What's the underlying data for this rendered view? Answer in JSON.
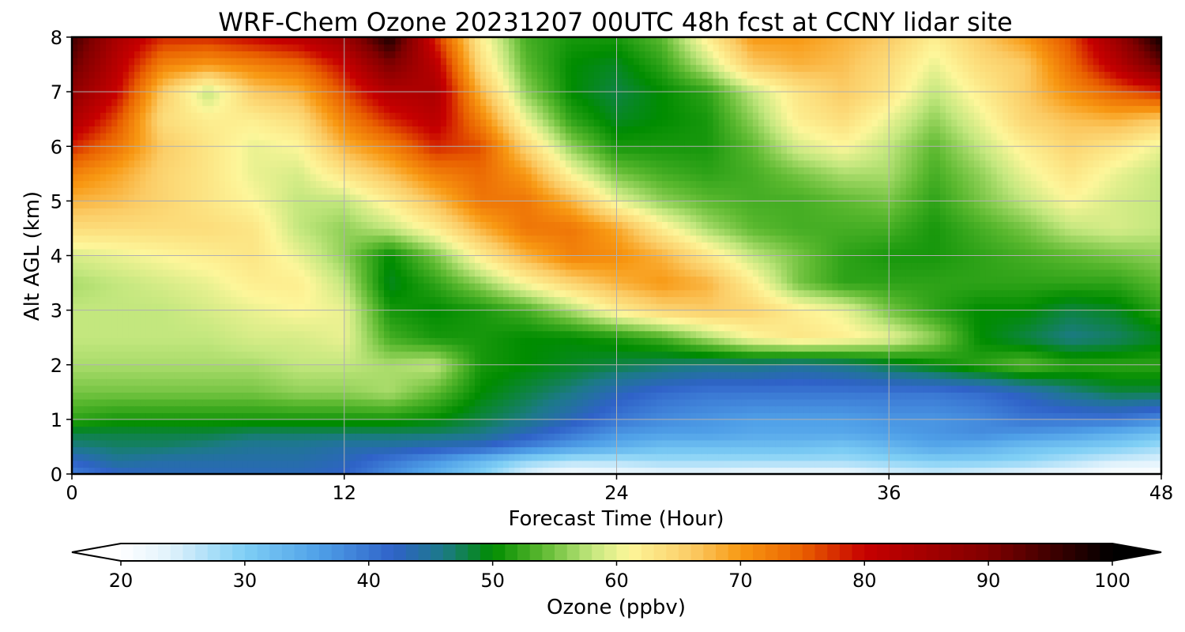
{
  "chart_data": {
    "type": "heatmap",
    "title": "WRF-Chem Ozone  20231207 00UTC 48h fcst at CCNY lidar site",
    "xlabel": "Forecast Time (Hour)",
    "ylabel": "Alt AGL (km)",
    "xlim": [
      0,
      48
    ],
    "ylim": [
      0,
      8
    ],
    "xticks": [
      0,
      12,
      24,
      36,
      48
    ],
    "yticks": [
      0,
      1,
      2,
      3,
      4,
      5,
      6,
      7,
      8
    ],
    "grid": true,
    "colorbar": {
      "label": "Ozone  (ppbv)",
      "orientation": "horizontal",
      "extend": "both",
      "range": [
        20,
        100
      ],
      "ticks": [
        20,
        30,
        40,
        50,
        60,
        70,
        80,
        90,
        100
      ],
      "colormap": [
        {
          "value": 20,
          "color": "#ffffff"
        },
        {
          "value": 24,
          "color": "#e0f2fc"
        },
        {
          "value": 30,
          "color": "#7fcff5"
        },
        {
          "value": 36,
          "color": "#4fa0e8"
        },
        {
          "value": 42,
          "color": "#2f62c8"
        },
        {
          "value": 46,
          "color": "#1c7a88"
        },
        {
          "value": 50,
          "color": "#008c00"
        },
        {
          "value": 54,
          "color": "#5cb930"
        },
        {
          "value": 58,
          "color": "#c3e77e"
        },
        {
          "value": 61,
          "color": "#fdf69a"
        },
        {
          "value": 66,
          "color": "#fbcc66"
        },
        {
          "value": 70,
          "color": "#f89812"
        },
        {
          "value": 75,
          "color": "#e96000"
        },
        {
          "value": 80,
          "color": "#c70000"
        },
        {
          "value": 90,
          "color": "#800000"
        },
        {
          "value": 100,
          "color": "#000000"
        }
      ]
    },
    "x": [
      0,
      2,
      4,
      6,
      8,
      10,
      12,
      14,
      16,
      18,
      20,
      22,
      24,
      26,
      28,
      30,
      32,
      34,
      36,
      38,
      40,
      42,
      44,
      46,
      48
    ],
    "y": [
      0,
      0.25,
      0.5,
      0.75,
      1,
      1.5,
      2,
      2.5,
      3,
      3.5,
      4,
      4.5,
      5,
      5.5,
      6,
      6.5,
      7,
      7.5,
      8
    ],
    "z": [
      [
        39,
        42,
        43,
        43,
        43,
        43,
        42,
        38,
        34,
        30,
        24,
        21,
        22,
        23,
        23,
        22,
        22,
        22,
        24,
        25,
        24,
        23,
        22,
        20,
        20
      ],
      [
        42,
        45,
        44,
        44,
        44,
        44,
        43,
        40,
        37,
        33,
        29,
        27,
        27,
        28,
        28,
        28,
        28,
        28,
        29,
        30,
        30,
        29,
        27,
        25,
        24
      ],
      [
        46,
        47,
        47,
        46,
        45,
        45,
        44,
        44,
        43,
        42,
        39,
        36,
        34,
        32,
        32,
        32,
        32,
        31,
        33,
        35,
        34,
        32,
        31,
        30,
        28
      ],
      [
        48,
        48,
        48,
        48,
        47,
        47,
        47,
        47,
        47,
        46,
        43,
        40,
        37,
        36,
        36,
        35,
        35,
        35,
        36,
        37,
        38,
        37,
        36,
        34,
        32
      ],
      [
        52,
        51,
        51,
        51,
        51,
        51,
        51,
        51,
        50,
        48,
        46,
        43,
        40,
        38,
        37,
        36,
        36,
        36,
        37,
        37,
        38,
        40,
        40,
        40,
        38
      ],
      [
        55,
        55,
        55,
        55,
        55,
        56,
        56,
        57,
        54,
        50,
        48,
        46,
        43,
        41,
        40,
        40,
        40,
        40,
        40,
        40,
        41,
        43,
        46,
        48,
        48
      ],
      [
        57,
        57,
        57,
        57,
        57,
        58,
        58,
        57,
        58,
        51,
        50,
        49,
        48,
        47,
        46,
        46,
        45,
        46,
        48,
        50,
        52,
        54,
        52,
        52,
        52
      ],
      [
        58,
        58,
        58,
        58,
        59,
        59,
        60,
        53,
        51,
        51,
        50,
        50,
        51,
        53,
        57,
        61,
        63,
        62,
        60,
        56,
        50,
        48,
        46,
        47,
        49
      ],
      [
        58,
        58,
        58,
        59,
        60,
        61,
        60,
        51,
        50,
        51,
        53,
        57,
        62,
        65,
        66,
        65,
        62,
        60,
        55,
        52,
        50,
        50,
        48,
        49,
        52
      ],
      [
        57,
        58,
        59,
        60,
        62,
        62,
        58,
        49,
        52,
        56,
        61,
        65,
        68,
        70,
        68,
        62,
        55,
        52,
        52,
        52,
        52,
        52,
        52,
        52,
        54
      ],
      [
        59,
        60,
        61,
        62,
        63,
        60,
        56,
        50,
        55,
        62,
        68,
        72,
        71,
        68,
        63,
        58,
        55,
        52,
        51,
        51,
        52,
        53,
        54,
        55,
        56
      ],
      [
        64,
        64,
        64,
        64,
        63,
        58,
        56,
        58,
        62,
        68,
        73,
        73,
        69,
        62,
        57,
        54,
        53,
        53,
        53,
        51,
        53,
        55,
        58,
        59,
        58
      ],
      [
        68,
        67,
        65,
        63,
        61,
        58,
        58,
        62,
        67,
        73,
        73,
        68,
        60,
        56,
        54,
        53,
        53,
        54,
        55,
        52,
        55,
        58,
        61,
        59,
        58
      ],
      [
        72,
        69,
        65,
        63,
        60,
        59,
        63,
        67,
        72,
        74,
        70,
        61,
        55,
        53,
        52,
        53,
        55,
        57,
        57,
        53,
        56,
        60,
        63,
        60,
        58
      ],
      [
        78,
        73,
        66,
        63,
        60,
        61,
        68,
        72,
        78,
        76,
        65,
        56,
        51,
        51,
        51,
        54,
        59,
        61,
        58,
        54,
        58,
        62,
        65,
        63,
        60
      ],
      [
        84,
        76,
        64,
        62,
        62,
        64,
        72,
        78,
        82,
        72,
        60,
        52,
        49,
        50,
        51,
        56,
        62,
        64,
        60,
        56,
        60,
        65,
        67,
        68,
        66
      ],
      [
        88,
        80,
        66,
        58,
        66,
        68,
        76,
        83,
        84,
        68,
        56,
        50,
        48,
        50,
        52,
        58,
        63,
        66,
        63,
        58,
        62,
        66,
        71,
        75,
        78
      ],
      [
        92,
        82,
        72,
        70,
        72,
        74,
        80,
        90,
        82,
        64,
        54,
        50,
        49,
        52,
        58,
        66,
        68,
        67,
        64,
        60,
        64,
        66,
        74,
        82,
        92
      ],
      [
        95,
        84,
        78,
        78,
        80,
        82,
        86,
        98,
        78,
        62,
        53,
        51,
        51,
        54,
        62,
        70,
        70,
        68,
        66,
        62,
        66,
        70,
        76,
        86,
        99
      ]
    ]
  }
}
